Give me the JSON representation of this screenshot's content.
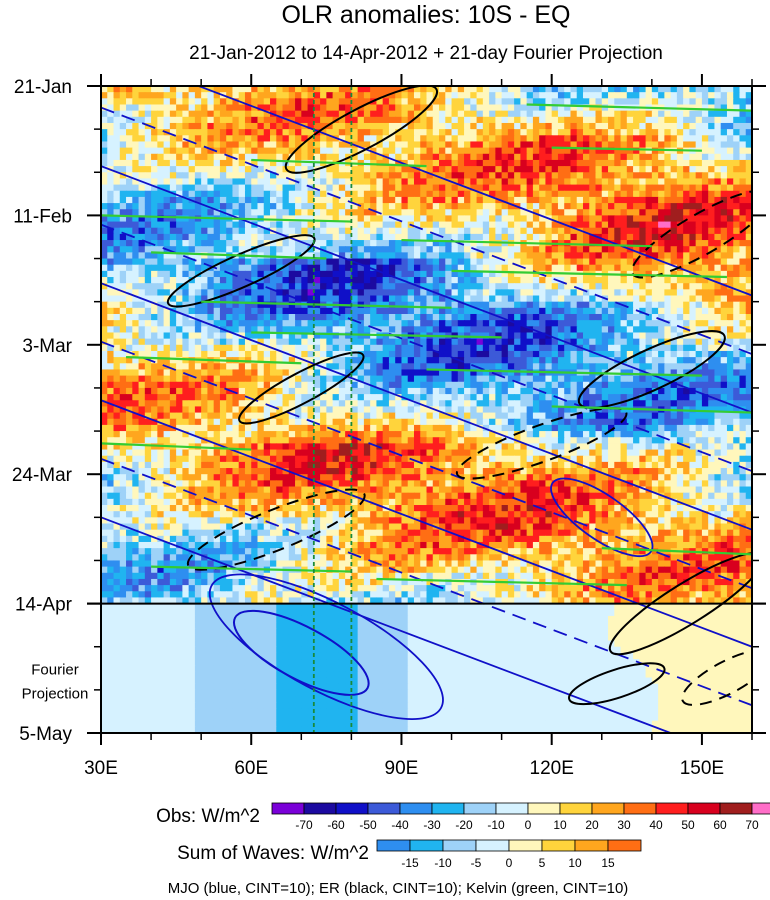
{
  "chart_data": {
    "type": "heatmap",
    "title": "OLR anomalies: 10S - EQ",
    "subtitle": "21-Jan-2012 to 14-Apr-2012 + 21-day Fourier Projection",
    "x_axis": {
      "range": [
        30,
        160
      ],
      "ticks": [
        {
          "value": 30,
          "label": "30E"
        },
        {
          "value": 60,
          "label": "60E"
        },
        {
          "value": 90,
          "label": "90E"
        },
        {
          "value": 120,
          "label": "120E"
        },
        {
          "value": 150,
          "label": "150E"
        }
      ]
    },
    "y_axis": {
      "range_days": [
        0,
        105
      ],
      "direction": "time increases downward",
      "ticks": [
        {
          "day": 0,
          "label": "21-Jan"
        },
        {
          "day": 21,
          "label": "11-Feb"
        },
        {
          "day": 42,
          "label": "3-Mar"
        },
        {
          "day": 63,
          "label": "24-Mar"
        },
        {
          "day": 84,
          "label": "14-Apr"
        },
        {
          "day": 105,
          "label": "5-May"
        }
      ]
    },
    "projection_label": [
      "Fourier",
      "Projection"
    ],
    "observation_end_day": 84,
    "reference_longitudes": [
      72.5,
      80
    ],
    "obs_colorbar": {
      "title": "Obs: W/m^2",
      "labels": [
        "-70",
        "-60",
        "-50",
        "-40",
        "-30",
        "-20",
        "-10",
        "0",
        "10",
        "20",
        "30",
        "40",
        "50",
        "60",
        "70"
      ],
      "colors": [
        "#7a00d8",
        "#1c0aa0",
        "#1010c8",
        "#3c5ad8",
        "#2e8ef0",
        "#20b4f0",
        "#9ed2f8",
        "#d6f2ff",
        "#fff7bc",
        "#ffd43c",
        "#ffa61e",
        "#ff6e14",
        "#ff1e1e",
        "#d8001e",
        "#a01e1e",
        "#ff6ec8"
      ]
    },
    "waves_colorbar": {
      "title": "Sum of Waves: W/m^2",
      "labels": [
        "-15",
        "-10",
        "-5",
        "0",
        "5",
        "10",
        "15"
      ],
      "colors": [
        "#2e8ef0",
        "#20b4f0",
        "#9ed2f8",
        "#d6f2ff",
        "#fff7bc",
        "#ffd43c",
        "#ffa61e",
        "#ff6e14"
      ]
    },
    "contour_legend": "MJO (blue, CINT=10); ER (black, CINT=10); Kelvin (green, CINT=10)",
    "series_colors": {
      "mjo": "#1010c8",
      "er": "#000000",
      "kelvin": "#33cc33",
      "reference_line": "#1a8a3a"
    }
  }
}
